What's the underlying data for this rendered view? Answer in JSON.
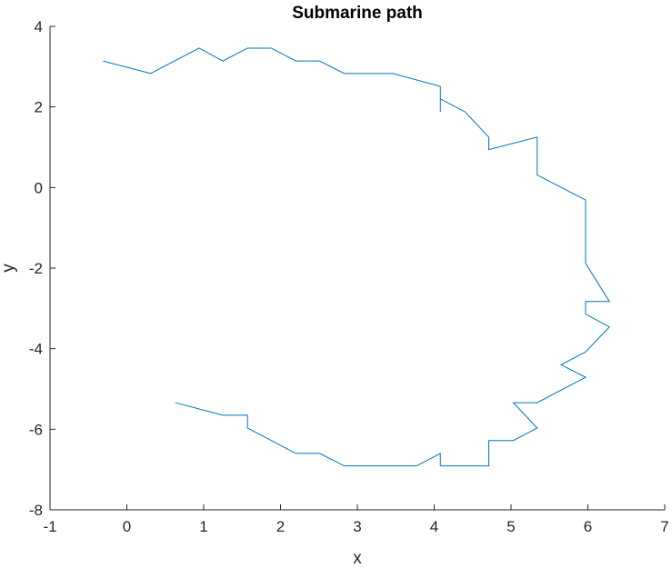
{
  "chart_data": {
    "type": "line",
    "title": "Submarine path",
    "xlabel": "x",
    "ylabel": "y",
    "xlim": [
      -1,
      7
    ],
    "ylim": [
      -8,
      4
    ],
    "xticks": [
      -1,
      0,
      1,
      2,
      3,
      4,
      5,
      6,
      7
    ],
    "yticks": [
      -8,
      -6,
      -4,
      -2,
      0,
      2,
      4
    ],
    "grid": false,
    "line_color": "#0072BD",
    "axis_color": "#262626",
    "series": [
      {
        "x": [
          -0.31,
          0.31,
          0.94,
          1.25,
          1.57,
          1.88,
          2.2,
          2.51,
          2.83,
          3.46,
          4.08,
          4.08,
          4.08,
          4.4,
          4.71,
          4.71,
          5.34,
          5.34,
          5.97,
          5.97,
          6.28,
          5.97,
          5.97,
          6.28,
          5.97,
          5.65,
          5.97,
          5.34,
          5.03,
          5.34,
          5.03,
          4.71,
          4.71,
          4.08,
          4.08,
          3.77,
          3.14,
          2.83,
          2.51,
          2.2,
          1.57,
          1.57,
          1.25,
          0.63
        ],
        "y": [
          3.14,
          2.83,
          3.46,
          3.14,
          3.46,
          3.46,
          3.14,
          3.14,
          2.83,
          2.83,
          2.51,
          1.88,
          2.2,
          1.88,
          1.25,
          0.94,
          1.25,
          0.31,
          -0.31,
          -1.88,
          -2.83,
          -2.83,
          -3.14,
          -3.46,
          -4.08,
          -4.4,
          -4.71,
          -5.34,
          -5.34,
          -5.97,
          -6.28,
          -6.28,
          -6.91,
          -6.91,
          -6.6,
          -6.91,
          -6.91,
          -6.91,
          -6.6,
          -6.6,
          -5.97,
          -5.65,
          -5.65,
          -5.34
        ]
      }
    ]
  }
}
